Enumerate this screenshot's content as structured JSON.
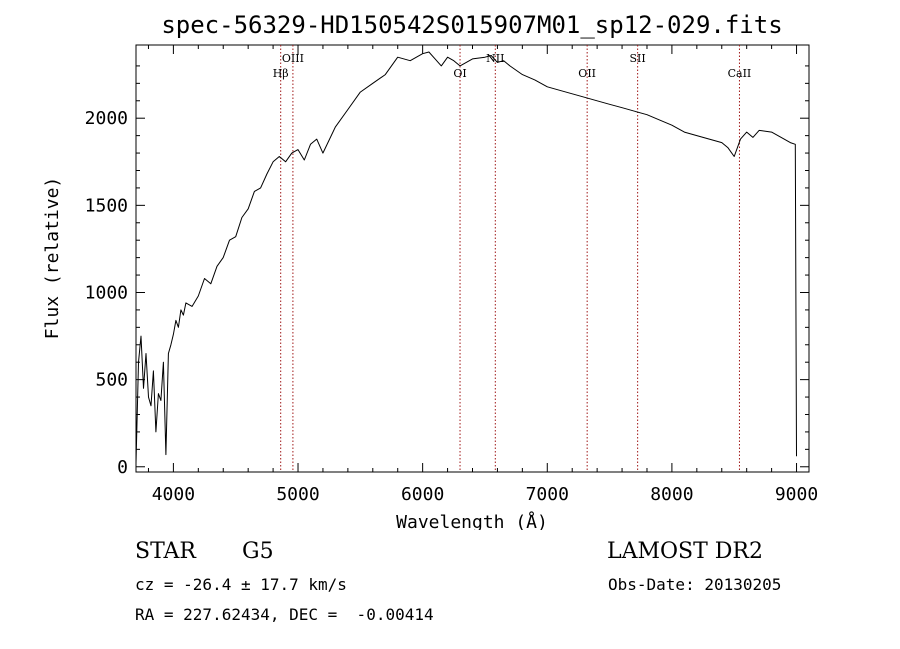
{
  "chart_data": {
    "type": "line",
    "title": "spec-56329-HD150542S015907M01_sp12-029.fits",
    "xlabel": "Wavelength (Å)",
    "ylabel": "Flux (relative)",
    "xlim": [
      3700,
      9100
    ],
    "ylim": [
      -30,
      2420
    ],
    "xticks": [
      4000,
      5000,
      6000,
      7000,
      8000,
      9000
    ],
    "yticks": [
      0,
      500,
      1000,
      1500,
      2000
    ],
    "grid": false,
    "line_color": "#000000",
    "marker_color": "#a01818",
    "series": [
      {
        "x": [
          3700,
          3720,
          3740,
          3760,
          3780,
          3800,
          3820,
          3840,
          3860,
          3880,
          3900,
          3920,
          3940,
          3960,
          3980,
          4000,
          4020,
          4040,
          4060,
          4080,
          4100,
          4150,
          4200,
          4250,
          4300,
          4350,
          4400,
          4450,
          4500,
          4550,
          4600,
          4650,
          4700,
          4750,
          4800,
          4850,
          4900,
          4950,
          5000,
          5050,
          5100,
          5150,
          5200,
          5300,
          5400,
          5500,
          5600,
          5700,
          5800,
          5900,
          6000,
          6050,
          6100,
          6150,
          6200,
          6250,
          6300,
          6400,
          6500,
          6550,
          6600,
          6650,
          6700,
          6800,
          6900,
          7000,
          7100,
          7200,
          7300,
          7400,
          7500,
          7600,
          7700,
          7800,
          7900,
          8000,
          8100,
          8200,
          8300,
          8400,
          8450,
          8500,
          8550,
          8600,
          8650,
          8700,
          8800,
          8900,
          8950,
          8990,
          9000
        ],
        "values": [
          20,
          600,
          750,
          450,
          650,
          400,
          350,
          550,
          200,
          420,
          380,
          600,
          70,
          650,
          700,
          760,
          840,
          800,
          900,
          870,
          940,
          920,
          980,
          1080,
          1050,
          1150,
          1200,
          1300,
          1320,
          1430,
          1480,
          1580,
          1600,
          1680,
          1750,
          1780,
          1750,
          1800,
          1820,
          1760,
          1850,
          1880,
          1800,
          1950,
          2050,
          2150,
          2200,
          2250,
          2350,
          2330,
          2370,
          2380,
          2340,
          2300,
          2350,
          2330,
          2300,
          2340,
          2350,
          2360,
          2320,
          2330,
          2300,
          2250,
          2220,
          2180,
          2160,
          2140,
          2120,
          2100,
          2080,
          2060,
          2040,
          2020,
          1990,
          1960,
          1920,
          1900,
          1880,
          1860,
          1830,
          1780,
          1880,
          1920,
          1890,
          1930,
          1920,
          1880,
          1860,
          1850,
          60
        ]
      }
    ],
    "line_markers": [
      {
        "label": "Hβ",
        "x": 4861
      },
      {
        "label": "OIII",
        "x": 4959
      },
      {
        "label": "OI",
        "x": 6300
      },
      {
        "label": "NII",
        "x": 6583
      },
      {
        "label": "OII",
        "x": 7320
      },
      {
        "label": "SII",
        "x": 7725
      },
      {
        "label": "CaII",
        "x": 8542
      }
    ]
  },
  "info": {
    "object_class": "STAR",
    "subclass": "G5",
    "survey": "LAMOST DR2",
    "redshift_line": "cz = -26.4 ± 17.7 km/s",
    "obs_date_line": "Obs-Date: 20130205",
    "coords_line": "RA = 227.62434, DEC =  -0.00414"
  }
}
